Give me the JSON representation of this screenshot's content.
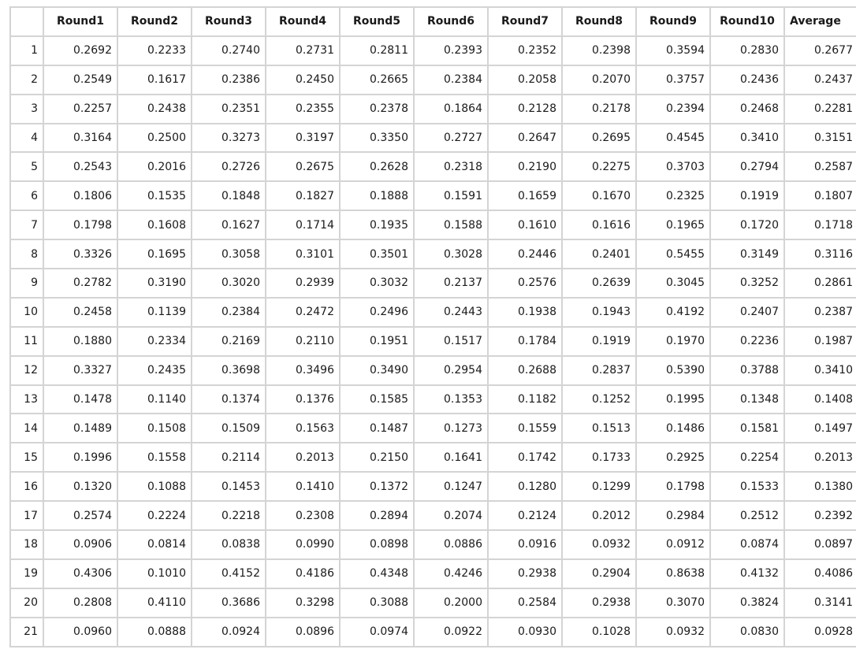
{
  "table": {
    "corner": "",
    "columns": [
      "Round1",
      "Round2",
      "Round3",
      "Round4",
      "Round5",
      "Round6",
      "Round7",
      "Round8",
      "Round9",
      "Round10",
      "Average"
    ],
    "rows": [
      {
        "index": "1",
        "values": [
          "0.2692",
          "0.2233",
          "0.2740",
          "0.2731",
          "0.2811",
          "0.2393",
          "0.2352",
          "0.2398",
          "0.3594",
          "0.2830",
          "0.2677"
        ]
      },
      {
        "index": "2",
        "values": [
          "0.2549",
          "0.1617",
          "0.2386",
          "0.2450",
          "0.2665",
          "0.2384",
          "0.2058",
          "0.2070",
          "0.3757",
          "0.2436",
          "0.2437"
        ]
      },
      {
        "index": "3",
        "values": [
          "0.2257",
          "0.2438",
          "0.2351",
          "0.2355",
          "0.2378",
          "0.1864",
          "0.2128",
          "0.2178",
          "0.2394",
          "0.2468",
          "0.2281"
        ]
      },
      {
        "index": "4",
        "values": [
          "0.3164",
          "0.2500",
          "0.3273",
          "0.3197",
          "0.3350",
          "0.2727",
          "0.2647",
          "0.2695",
          "0.4545",
          "0.3410",
          "0.3151"
        ]
      },
      {
        "index": "5",
        "values": [
          "0.2543",
          "0.2016",
          "0.2726",
          "0.2675",
          "0.2628",
          "0.2318",
          "0.2190",
          "0.2275",
          "0.3703",
          "0.2794",
          "0.2587"
        ]
      },
      {
        "index": "6",
        "values": [
          "0.1806",
          "0.1535",
          "0.1848",
          "0.1827",
          "0.1888",
          "0.1591",
          "0.1659",
          "0.1670",
          "0.2325",
          "0.1919",
          "0.1807"
        ]
      },
      {
        "index": "7",
        "values": [
          "0.1798",
          "0.1608",
          "0.1627",
          "0.1714",
          "0.1935",
          "0.1588",
          "0.1610",
          "0.1616",
          "0.1965",
          "0.1720",
          "0.1718"
        ]
      },
      {
        "index": "8",
        "values": [
          "0.3326",
          "0.1695",
          "0.3058",
          "0.3101",
          "0.3501",
          "0.3028",
          "0.2446",
          "0.2401",
          "0.5455",
          "0.3149",
          "0.3116"
        ]
      },
      {
        "index": "9",
        "values": [
          "0.2782",
          "0.3190",
          "0.3020",
          "0.2939",
          "0.3032",
          "0.2137",
          "0.2576",
          "0.2639",
          "0.3045",
          "0.3252",
          "0.2861"
        ]
      },
      {
        "index": "10",
        "values": [
          "0.2458",
          "0.1139",
          "0.2384",
          "0.2472",
          "0.2496",
          "0.2443",
          "0.1938",
          "0.1943",
          "0.4192",
          "0.2407",
          "0.2387"
        ]
      },
      {
        "index": "11",
        "values": [
          "0.1880",
          "0.2334",
          "0.2169",
          "0.2110",
          "0.1951",
          "0.1517",
          "0.1784",
          "0.1919",
          "0.1970",
          "0.2236",
          "0.1987"
        ]
      },
      {
        "index": "12",
        "values": [
          "0.3327",
          "0.2435",
          "0.3698",
          "0.3496",
          "0.3490",
          "0.2954",
          "0.2688",
          "0.2837",
          "0.5390",
          "0.3788",
          "0.3410"
        ]
      },
      {
        "index": "13",
        "values": [
          "0.1478",
          "0.1140",
          "0.1374",
          "0.1376",
          "0.1585",
          "0.1353",
          "0.1182",
          "0.1252",
          "0.1995",
          "0.1348",
          "0.1408"
        ]
      },
      {
        "index": "14",
        "values": [
          "0.1489",
          "0.1508",
          "0.1509",
          "0.1563",
          "0.1487",
          "0.1273",
          "0.1559",
          "0.1513",
          "0.1486",
          "0.1581",
          "0.1497"
        ]
      },
      {
        "index": "15",
        "values": [
          "0.1996",
          "0.1558",
          "0.2114",
          "0.2013",
          "0.2150",
          "0.1641",
          "0.1742",
          "0.1733",
          "0.2925",
          "0.2254",
          "0.2013"
        ]
      },
      {
        "index": "16",
        "values": [
          "0.1320",
          "0.1088",
          "0.1453",
          "0.1410",
          "0.1372",
          "0.1247",
          "0.1280",
          "0.1299",
          "0.1798",
          "0.1533",
          "0.1380"
        ]
      },
      {
        "index": "17",
        "values": [
          "0.2574",
          "0.2224",
          "0.2218",
          "0.2308",
          "0.2894",
          "0.2074",
          "0.2124",
          "0.2012",
          "0.2984",
          "0.2512",
          "0.2392"
        ]
      },
      {
        "index": "18",
        "values": [
          "0.0906",
          "0.0814",
          "0.0838",
          "0.0990",
          "0.0898",
          "0.0886",
          "0.0916",
          "0.0932",
          "0.0912",
          "0.0874",
          "0.0897"
        ]
      },
      {
        "index": "19",
        "values": [
          "0.4306",
          "0.1010",
          "0.4152",
          "0.4186",
          "0.4348",
          "0.4246",
          "0.2938",
          "0.2904",
          "0.8638",
          "0.4132",
          "0.4086"
        ]
      },
      {
        "index": "20",
        "values": [
          "0.2808",
          "0.4110",
          "0.3686",
          "0.3298",
          "0.3088",
          "0.2000",
          "0.2584",
          "0.2938",
          "0.3070",
          "0.3824",
          "0.3141"
        ]
      },
      {
        "index": "21",
        "values": [
          "0.0960",
          "0.0888",
          "0.0924",
          "0.0896",
          "0.0974",
          "0.0922",
          "0.0930",
          "0.1028",
          "0.0932",
          "0.0830",
          "0.0928"
        ]
      }
    ]
  }
}
